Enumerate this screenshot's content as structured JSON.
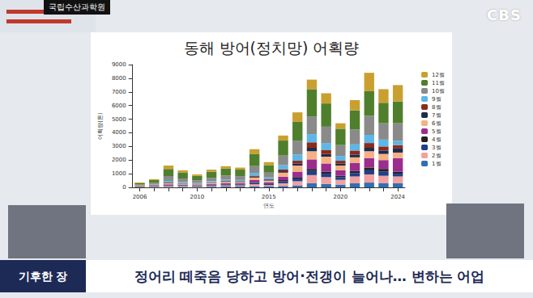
{
  "chart_data": {
    "type": "bar",
    "title": "동해 방어(정치망) 어획량",
    "x_label": "연도",
    "y_label": "어획량(톤)",
    "categories": [
      2006,
      null,
      null,
      null,
      2010,
      null,
      null,
      null,
      null,
      2015,
      null,
      null,
      null,
      null,
      2020,
      null,
      null,
      null,
      2024
    ],
    "series": [
      {
        "name": "1월",
        "color": "#2f6fb5",
        "values": [
          10,
          20,
          30,
          40,
          30,
          50,
          60,
          60,
          80,
          60,
          100,
          150,
          300,
          250,
          200,
          300,
          350,
          300,
          300
        ]
      },
      {
        "name": "2월",
        "color": "#f2a0a0",
        "values": [
          20,
          30,
          60,
          60,
          50,
          60,
          80,
          80,
          150,
          100,
          200,
          300,
          600,
          500,
          350,
          500,
          600,
          550,
          500
        ]
      },
      {
        "name": "3월",
        "color": "#1f3f8a",
        "values": [
          20,
          30,
          40,
          50,
          40,
          50,
          60,
          60,
          100,
          80,
          150,
          200,
          300,
          250,
          200,
          250,
          300,
          300,
          200
        ]
      },
      {
        "name": "4월",
        "color": "#222222",
        "values": [
          10,
          20,
          30,
          20,
          20,
          30,
          30,
          30,
          60,
          40,
          80,
          100,
          150,
          150,
          100,
          150,
          200,
          200,
          150
        ]
      },
      {
        "name": "5월",
        "color": "#9b2d8e",
        "values": [
          20,
          30,
          60,
          40,
          30,
          60,
          80,
          70,
          150,
          100,
          250,
          400,
          700,
          600,
          400,
          600,
          700,
          650,
          1000
        ]
      },
      {
        "name": "6월",
        "color": "#f5b183",
        "values": [
          20,
          20,
          80,
          60,
          50,
          70,
          90,
          80,
          180,
          120,
          300,
          450,
          600,
          500,
          350,
          400,
          500,
          450,
          400
        ]
      },
      {
        "name": "7월",
        "color": "#1d2b4f",
        "values": [
          10,
          10,
          20,
          20,
          20,
          20,
          30,
          30,
          60,
          40,
          100,
          150,
          250,
          200,
          150,
          200,
          250,
          250,
          300
        ]
      },
      {
        "name": "8월",
        "color": "#8b2a1a",
        "values": [
          10,
          20,
          40,
          30,
          20,
          30,
          40,
          40,
          80,
          50,
          150,
          200,
          400,
          300,
          200,
          300,
          350,
          300,
          250
        ]
      },
      {
        "name": "9월",
        "color": "#5bb7e8",
        "values": [
          20,
          30,
          120,
          80,
          60,
          80,
          100,
          90,
          200,
          140,
          300,
          450,
          600,
          500,
          350,
          450,
          600,
          500,
          300
        ]
      },
      {
        "name": "10월",
        "color": "#8a8a8a",
        "values": [
          60,
          120,
          350,
          250,
          200,
          250,
          300,
          280,
          500,
          350,
          700,
          1000,
          1300,
          1200,
          800,
          1100,
          1400,
          1200,
          1300
        ]
      },
      {
        "name": "11월",
        "color": "#4f7f2c",
        "values": [
          100,
          200,
          520,
          450,
          320,
          450,
          500,
          480,
          900,
          550,
          1100,
          1400,
          2000,
          1700,
          1200,
          1400,
          1800,
          1500,
          1600
        ]
      },
      {
        "name": "12월",
        "color": "#c9a030",
        "values": [
          50,
          70,
          250,
          150,
          110,
          150,
          180,
          150,
          340,
          220,
          370,
          700,
          700,
          750,
          400,
          750,
          1350,
          1000,
          1200
        ]
      }
    ],
    "stacked": true,
    "ylim": [
      0,
      9000
    ],
    "yticks": [
      0,
      1000,
      2000,
      3000,
      4000,
      5000,
      6000,
      7000,
      8000,
      9000
    ],
    "grid": false,
    "legend": "right",
    "data_labels": false
  },
  "source": "국립수산과학원",
  "channel": "CBS",
  "segment": "기후한 장",
  "headline": "정어리 떼죽음 당하고 방어·전갱이 늘어나… 변하는 어업"
}
